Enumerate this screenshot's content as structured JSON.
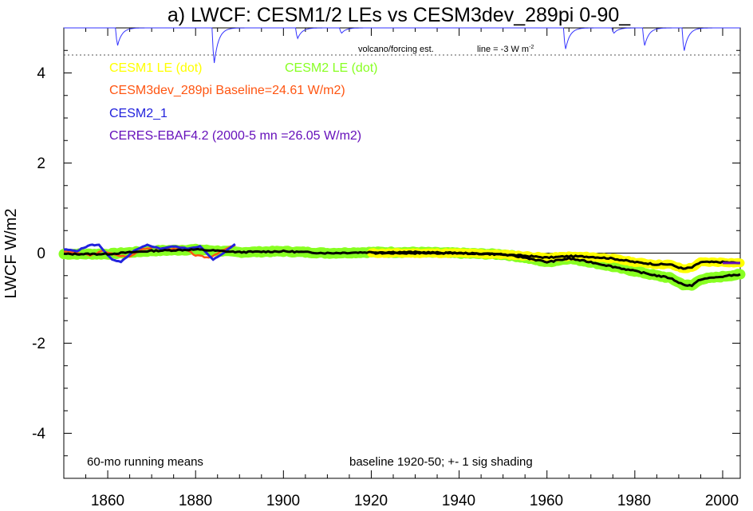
{
  "chart_data": {
    "type": "line",
    "title": "a) LWCF: CESM1/2 LEs vs CESM3dev_289pi 0-90_",
    "ylabel": "LWCF W/m2",
    "xlabel": "",
    "xlim": [
      1850,
      2004
    ],
    "ylim": [
      -5,
      5
    ],
    "x_ticks": [
      "1860",
      "1880",
      "1900",
      "1920",
      "1940",
      "1960",
      "1980",
      "2000"
    ],
    "y_ticks": [
      "4",
      "2",
      "0",
      "-2",
      "-4"
    ],
    "grid": false,
    "legend": {
      "cesm1": "CESM1 LE (dot)",
      "cesm2": "CESM2 LE (dot)",
      "cesm3dev": "CESM3dev_289pi Baseline=24.61 W/m2)",
      "cesm2_1": "CESM2_1",
      "ceres": "CERES-EBAF4.2 (2000-5 mn =26.05 W/m2)"
    },
    "annotations": {
      "running_means": "60-mo running means",
      "baseline": "baseline 1920-50; +- 1 sig shading",
      "volcano": "volcano/forcing est.",
      "volcano_line": "line = -3 W m",
      "volcano_line_sup": "-2"
    },
    "colors": {
      "cesm1": "#ffff00",
      "cesm2": "#88ff22",
      "cesm3dev": "#ff5511",
      "cesm2_1": "#2222dd",
      "ceres": "#6611bb",
      "volcano": "#3333ff",
      "ensemble_mean": "#000000"
    },
    "series": [
      {
        "name": "CESM2 LE (dot)",
        "x": [
          1850,
          1860,
          1870,
          1880,
          1890,
          1900,
          1910,
          1920,
          1930,
          1940,
          1950,
          1955,
          1960,
          1965,
          1970,
          1975,
          1980,
          1985,
          1988,
          1991,
          1993,
          1995,
          2000,
          2004
        ],
        "values": [
          -0.02,
          -0.02,
          0.05,
          0.08,
          0.02,
          0.04,
          0.0,
          0.02,
          0.02,
          0.0,
          -0.03,
          -0.1,
          -0.2,
          -0.12,
          -0.2,
          -0.3,
          -0.4,
          -0.5,
          -0.55,
          -0.7,
          -0.72,
          -0.58,
          -0.52,
          -0.47
        ]
      },
      {
        "name": "CESM1 LE (dot)",
        "x": [
          1920,
          1930,
          1940,
          1950,
          1955,
          1960,
          1965,
          1970,
          1975,
          1980,
          1985,
          1988,
          1991,
          1993,
          1995,
          2000,
          2004
        ],
        "values": [
          0.0,
          0.0,
          0.0,
          -0.03,
          -0.06,
          -0.1,
          -0.07,
          -0.08,
          -0.12,
          -0.2,
          -0.25,
          -0.25,
          -0.35,
          -0.32,
          -0.2,
          -0.2,
          -0.22
        ]
      },
      {
        "name": "CESM3dev_289pi Baseline=24.61 W/m2)",
        "x": [
          1850,
          1853,
          1856,
          1859,
          1862,
          1865,
          1868,
          1871,
          1874,
          1877,
          1880,
          1883,
          1886,
          1889
        ],
        "values": [
          0.05,
          0.0,
          -0.05,
          0.05,
          -0.05,
          -0.08,
          0.1,
          0.12,
          0.08,
          0.12,
          -0.05,
          -0.1,
          0.05,
          0.18
        ]
      },
      {
        "name": "CESM2_1",
        "x": [
          1850,
          1853,
          1856,
          1858,
          1861,
          1863,
          1866,
          1869,
          1872,
          1875,
          1878,
          1881,
          1884,
          1887,
          1889
        ],
        "values": [
          0.08,
          0.05,
          0.18,
          0.18,
          -0.15,
          -0.2,
          0.05,
          0.18,
          0.1,
          0.15,
          0.1,
          0.15,
          -0.15,
          0.05,
          0.2
        ]
      },
      {
        "name": "Ensemble mean",
        "x": [
          1850,
          1860,
          1870,
          1880,
          1890,
          1900,
          1910,
          1920,
          1930,
          1940,
          1950,
          1955,
          1960,
          1965,
          1970,
          1975,
          1980,
          1985,
          1988,
          1991,
          1993,
          1995,
          2000,
          2004
        ],
        "values": [
          -0.02,
          -0.02,
          0.05,
          0.08,
          0.02,
          0.04,
          0.0,
          0.02,
          0.02,
          0.0,
          -0.03,
          -0.1,
          -0.2,
          -0.12,
          -0.2,
          -0.3,
          -0.4,
          -0.5,
          -0.55,
          -0.7,
          -0.72,
          -0.58,
          -0.52,
          -0.47
        ]
      },
      {
        "name": "Ensemble mean (CESM1)",
        "x": [
          1920,
          1930,
          1940,
          1950,
          1955,
          1960,
          1965,
          1970,
          1975,
          1980,
          1985,
          1988,
          1991,
          1993,
          1995,
          2000,
          2004
        ],
        "values": [
          0.0,
          0.0,
          0.0,
          -0.03,
          -0.06,
          -0.1,
          -0.07,
          -0.08,
          -0.12,
          -0.2,
          -0.25,
          -0.25,
          -0.35,
          -0.32,
          -0.2,
          -0.2,
          -0.22
        ]
      }
    ],
    "volcano_dips": [
      {
        "year": 1862,
        "depth": 0.5
      },
      {
        "year": 1884,
        "depth": 1.0
      },
      {
        "year": 1903,
        "depth": 0.3
      },
      {
        "year": 1913,
        "depth": 0.15
      },
      {
        "year": 1964,
        "depth": 0.6
      },
      {
        "year": 1975,
        "depth": 0.15
      },
      {
        "year": 1982,
        "depth": 0.5
      },
      {
        "year": 1991,
        "depth": 0.65
      }
    ],
    "volcano_reference_line": 4.4
  }
}
